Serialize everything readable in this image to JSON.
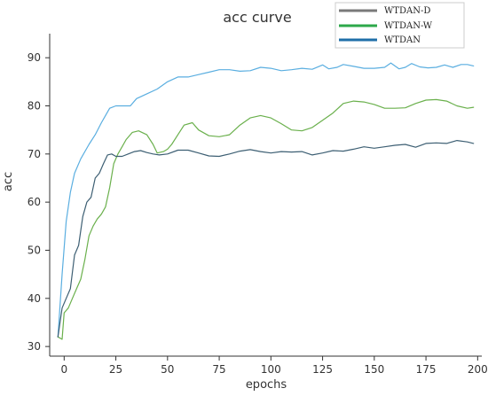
{
  "chart_data": {
    "type": "line",
    "title": "acc curve",
    "xlabel": "epochs",
    "ylabel": "acc",
    "xlim": [
      -7,
      202
    ],
    "ylim": [
      28,
      95
    ],
    "xticks": [
      0,
      25,
      50,
      75,
      100,
      125,
      150,
      175,
      200
    ],
    "yticks": [
      30,
      40,
      50,
      60,
      70,
      80,
      90
    ],
    "grid": false,
    "legend": {
      "placement": "top-right",
      "entries": [
        {
          "name": "WTDAN-D",
          "color": "#7a7a7a"
        },
        {
          "name": "WTDAN-W",
          "color": "#2ca84a"
        },
        {
          "name": "WTDAN",
          "color": "#1f6fa8"
        }
      ]
    },
    "series": [
      {
        "name": "WTDAN",
        "color": "#5aaee0",
        "points": [
          [
            -3,
            32
          ],
          [
            -1,
            45
          ],
          [
            1,
            56
          ],
          [
            3,
            62
          ],
          [
            5,
            66
          ],
          [
            8,
            69
          ],
          [
            12,
            72
          ],
          [
            15,
            74
          ],
          [
            18,
            76.5
          ],
          [
            20,
            78
          ],
          [
            22,
            79.5
          ],
          [
            25,
            80
          ],
          [
            28,
            80
          ],
          [
            32,
            80
          ],
          [
            35,
            81.5
          ],
          [
            40,
            82.5
          ],
          [
            45,
            83.5
          ],
          [
            50,
            85
          ],
          [
            55,
            86
          ],
          [
            60,
            86
          ],
          [
            65,
            86.5
          ],
          [
            70,
            87
          ],
          [
            75,
            87.5
          ],
          [
            80,
            87.5
          ],
          [
            85,
            87.2
          ],
          [
            90,
            87.3
          ],
          [
            95,
            88
          ],
          [
            100,
            87.8
          ],
          [
            105,
            87.3
          ],
          [
            110,
            87.5
          ],
          [
            115,
            87.8
          ],
          [
            120,
            87.6
          ],
          [
            125,
            88.5
          ],
          [
            128,
            87.7
          ],
          [
            132,
            88
          ],
          [
            135,
            88.6
          ],
          [
            140,
            88.2
          ],
          [
            145,
            87.8
          ],
          [
            150,
            87.8
          ],
          [
            155,
            88
          ],
          [
            158,
            88.9
          ],
          [
            162,
            87.7
          ],
          [
            165,
            88
          ],
          [
            168,
            88.8
          ],
          [
            172,
            88.1
          ],
          [
            176,
            87.9
          ],
          [
            180,
            88
          ],
          [
            184,
            88.5
          ],
          [
            188,
            88
          ],
          [
            192,
            88.6
          ],
          [
            195,
            88.6
          ],
          [
            198,
            88.3
          ]
        ]
      },
      {
        "name": "WTDAN-W",
        "color": "#6ab04c",
        "points": [
          [
            -3,
            32
          ],
          [
            -1,
            31.5
          ],
          [
            0,
            37
          ],
          [
            2,
            38
          ],
          [
            4,
            40
          ],
          [
            6,
            42
          ],
          [
            8,
            44
          ],
          [
            10,
            48
          ],
          [
            12,
            53
          ],
          [
            14,
            55
          ],
          [
            16,
            56.5
          ],
          [
            18,
            57.5
          ],
          [
            20,
            59
          ],
          [
            22,
            63
          ],
          [
            24,
            68
          ],
          [
            26,
            70
          ],
          [
            28,
            71.5
          ],
          [
            30,
            73
          ],
          [
            33,
            74.5
          ],
          [
            36,
            74.8
          ],
          [
            40,
            74
          ],
          [
            43,
            72
          ],
          [
            45,
            70.2
          ],
          [
            48,
            70.5
          ],
          [
            50,
            71
          ],
          [
            52,
            72
          ],
          [
            55,
            74
          ],
          [
            58,
            76
          ],
          [
            62,
            76.5
          ],
          [
            65,
            75
          ],
          [
            70,
            73.8
          ],
          [
            75,
            73.6
          ],
          [
            80,
            74
          ],
          [
            85,
            76
          ],
          [
            90,
            77.5
          ],
          [
            95,
            78
          ],
          [
            100,
            77.5
          ],
          [
            105,
            76.3
          ],
          [
            110,
            75
          ],
          [
            115,
            74.8
          ],
          [
            120,
            75.5
          ],
          [
            125,
            77
          ],
          [
            130,
            78.5
          ],
          [
            135,
            80.5
          ],
          [
            140,
            81
          ],
          [
            145,
            80.8
          ],
          [
            150,
            80.3
          ],
          [
            155,
            79.5
          ],
          [
            160,
            79.5
          ],
          [
            165,
            79.6
          ],
          [
            170,
            80.5
          ],
          [
            175,
            81.2
          ],
          [
            180,
            81.3
          ],
          [
            185,
            81
          ],
          [
            190,
            80
          ],
          [
            195,
            79.5
          ],
          [
            198,
            79.7
          ]
        ]
      },
      {
        "name": "WTDAN-D",
        "color": "#3d5f73",
        "points": [
          [
            -3,
            32
          ],
          [
            -1,
            38
          ],
          [
            1,
            40
          ],
          [
            3,
            42
          ],
          [
            5,
            49
          ],
          [
            7,
            51
          ],
          [
            9,
            57
          ],
          [
            11,
            60
          ],
          [
            13,
            61
          ],
          [
            15,
            65
          ],
          [
            17,
            66
          ],
          [
            19,
            68
          ],
          [
            21,
            69.8
          ],
          [
            23,
            70
          ],
          [
            25,
            69.5
          ],
          [
            28,
            69.5
          ],
          [
            31,
            70
          ],
          [
            34,
            70.5
          ],
          [
            37,
            70.7
          ],
          [
            40,
            70.3
          ],
          [
            43,
            70
          ],
          [
            46,
            69.8
          ],
          [
            50,
            70
          ],
          [
            55,
            70.8
          ],
          [
            60,
            70.8
          ],
          [
            65,
            70.2
          ],
          [
            70,
            69.6
          ],
          [
            75,
            69.5
          ],
          [
            80,
            70
          ],
          [
            85,
            70.6
          ],
          [
            90,
            70.9
          ],
          [
            95,
            70.5
          ],
          [
            100,
            70.2
          ],
          [
            105,
            70.5
          ],
          [
            110,
            70.4
          ],
          [
            115,
            70.5
          ],
          [
            120,
            69.8
          ],
          [
            125,
            70.2
          ],
          [
            130,
            70.7
          ],
          [
            135,
            70.6
          ],
          [
            140,
            71
          ],
          [
            145,
            71.5
          ],
          [
            150,
            71.2
          ],
          [
            155,
            71.5
          ],
          [
            160,
            71.8
          ],
          [
            165,
            72
          ],
          [
            170,
            71.4
          ],
          [
            175,
            72.2
          ],
          [
            180,
            72.3
          ],
          [
            185,
            72.2
          ],
          [
            190,
            72.8
          ],
          [
            195,
            72.5
          ],
          [
            198,
            72.2
          ]
        ]
      }
    ]
  }
}
